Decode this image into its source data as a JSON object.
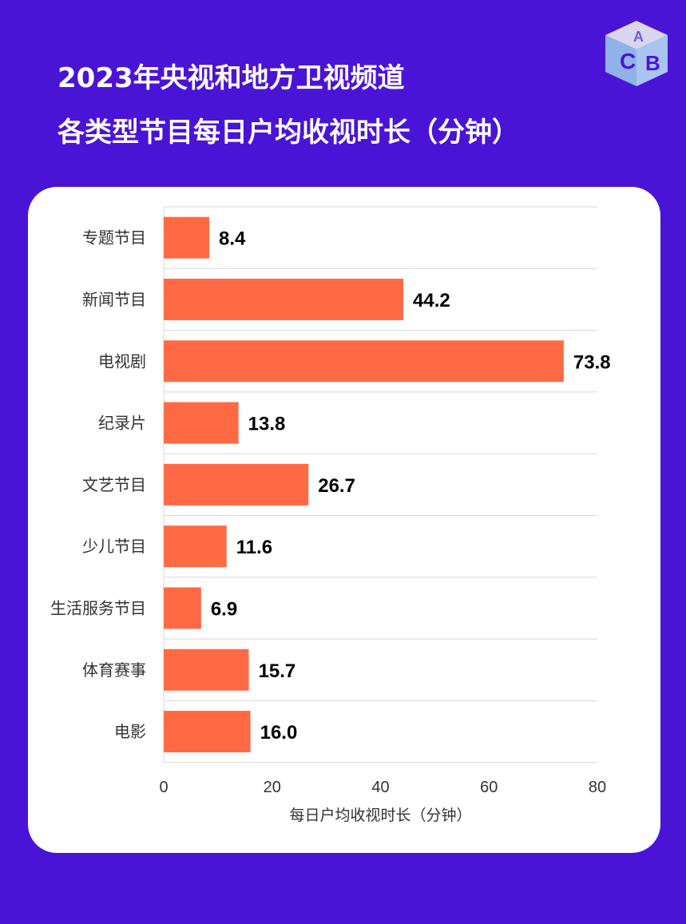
{
  "header": {
    "title_line1": "2023年央视和地方卫视频道",
    "title_line2": "各类型节目每日户均收视时长（分钟）"
  },
  "logo": {
    "icon": "abc-cube-logo",
    "letters": "ABC"
  },
  "colors": {
    "background": "#4a14d6",
    "card": "#ffffff",
    "bar": "#ff6a45",
    "text": "#000000",
    "axis_text": "#333333",
    "gridline": "#d8d8d8"
  },
  "chart_data": {
    "type": "bar",
    "orientation": "horizontal",
    "categories": [
      "专题节目",
      "新闻节目",
      "电视剧",
      "纪录片",
      "文艺节目",
      "少儿节目",
      "生活服务节目",
      "体育赛事",
      "电影"
    ],
    "values": [
      8.4,
      44.2,
      73.8,
      13.8,
      26.7,
      11.6,
      6.9,
      15.7,
      16.0
    ],
    "value_labels": [
      "8.4",
      "44.2",
      "73.8",
      "13.8",
      "26.7",
      "11.6",
      "6.9",
      "15.7",
      "16.0"
    ],
    "xlabel": "每日户均收视时长（分钟）",
    "xlim": [
      0,
      80
    ],
    "xticks": [
      0,
      20,
      40,
      60,
      80
    ],
    "grid": "horizontal separators",
    "legend": "none"
  }
}
